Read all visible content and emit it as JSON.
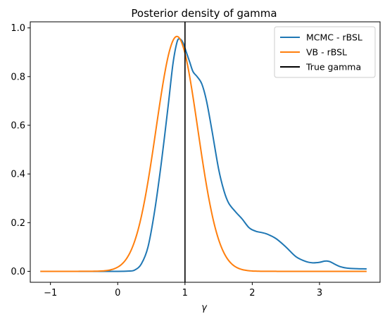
{
  "chart_data": {
    "type": "line",
    "title": "Posterior density of gamma",
    "xlabel": "γ",
    "ylabel": "",
    "xlim": [
      -1.3,
      3.9
    ],
    "ylim": [
      -0.045,
      1.025
    ],
    "xticks": [
      -1,
      0,
      1,
      2,
      3
    ],
    "yticks": [
      0.0,
      0.2,
      0.4,
      0.6,
      0.8,
      1.0
    ],
    "xtick_labels": [
      "−1",
      "0",
      "1",
      "2",
      "3"
    ],
    "ytick_labels": [
      "0.0",
      "0.2",
      "0.4",
      "0.6",
      "0.8",
      "1.0"
    ],
    "grid": false,
    "legend_position": "top-right",
    "vline": {
      "name": "True gamma",
      "x": 1.0,
      "color": "#000000"
    },
    "series": [
      {
        "name": "MCMC - rBSL",
        "color": "#1f77b4",
        "points": [
          [
            -1.15,
            0.0
          ],
          [
            -0.5,
            0.0
          ],
          [
            0.0,
            0.0
          ],
          [
            0.15,
            0.001
          ],
          [
            0.25,
            0.005
          ],
          [
            0.35,
            0.03
          ],
          [
            0.45,
            0.1
          ],
          [
            0.55,
            0.25
          ],
          [
            0.65,
            0.45
          ],
          [
            0.75,
            0.68
          ],
          [
            0.82,
            0.85
          ],
          [
            0.88,
            0.94
          ],
          [
            0.92,
            0.955
          ],
          [
            0.97,
            0.94
          ],
          [
            1.02,
            0.9
          ],
          [
            1.07,
            0.86
          ],
          [
            1.12,
            0.82
          ],
          [
            1.18,
            0.8
          ],
          [
            1.25,
            0.77
          ],
          [
            1.32,
            0.7
          ],
          [
            1.4,
            0.58
          ],
          [
            1.5,
            0.42
          ],
          [
            1.58,
            0.33
          ],
          [
            1.65,
            0.28
          ],
          [
            1.75,
            0.245
          ],
          [
            1.85,
            0.215
          ],
          [
            1.95,
            0.18
          ],
          [
            2.05,
            0.165
          ],
          [
            2.2,
            0.155
          ],
          [
            2.35,
            0.135
          ],
          [
            2.5,
            0.1
          ],
          [
            2.65,
            0.06
          ],
          [
            2.8,
            0.04
          ],
          [
            2.9,
            0.035
          ],
          [
            3.0,
            0.037
          ],
          [
            3.08,
            0.042
          ],
          [
            3.15,
            0.04
          ],
          [
            3.3,
            0.02
          ],
          [
            3.45,
            0.012
          ],
          [
            3.7,
            0.01
          ]
        ]
      },
      {
        "name": "VB - rBSL",
        "color": "#ff7f0e",
        "mu": 0.88,
        "sigma": 0.31,
        "peak": 0.965,
        "x_range": [
          -1.15,
          3.7
        ]
      }
    ]
  }
}
